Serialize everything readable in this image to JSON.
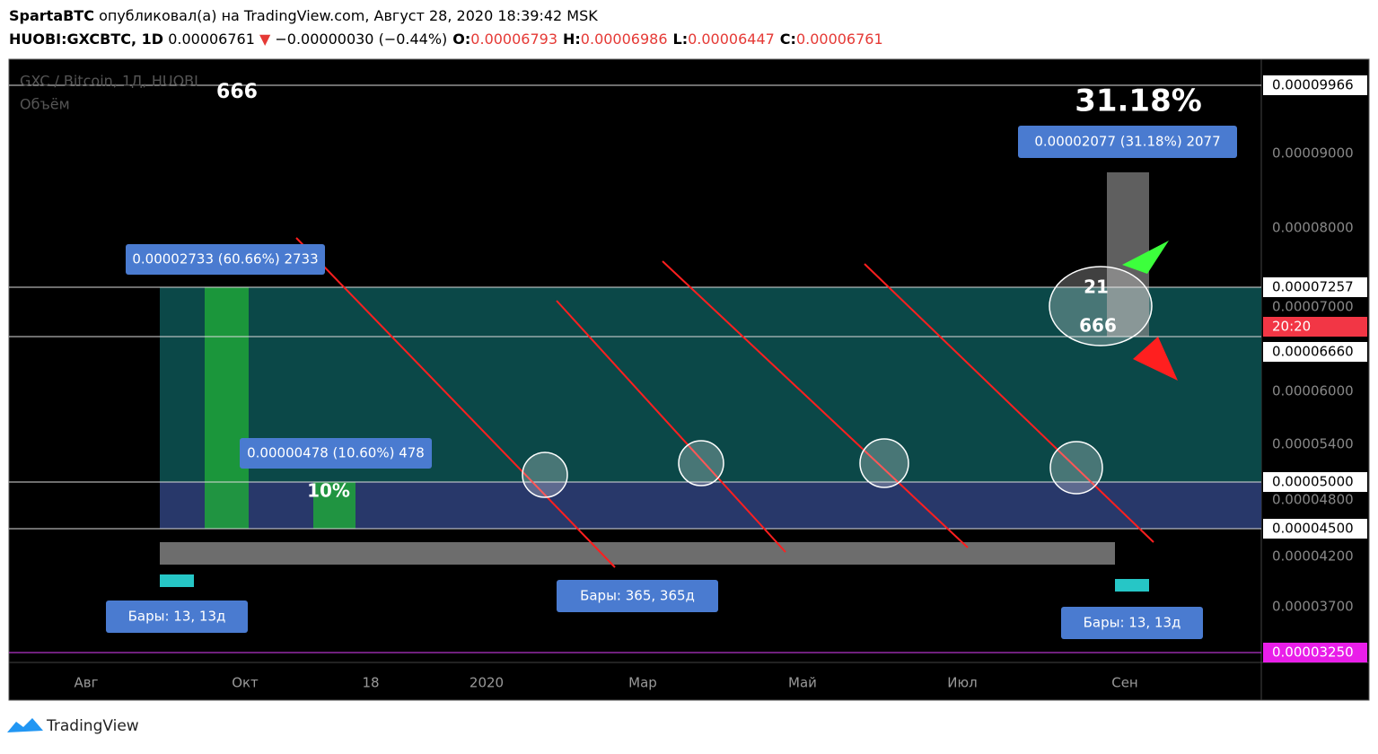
{
  "header": {
    "author": "SpartaBTC",
    "published": "опубликовал(а) на TradingView.com, Август 28, 2020 18:39:42 MSK",
    "symbol": "HUOBI:GXCBTC, 1D",
    "price": "0.00006761",
    "change": "−0.00000030 (−0.44%)",
    "ohlc": [
      {
        "label": "O:",
        "value": "0.00006793"
      },
      {
        "label": "H:",
        "value": "0.00006986"
      },
      {
        "label": "L:",
        "value": "0.00006447"
      },
      {
        "label": "C:",
        "value": "0.00006761"
      }
    ]
  },
  "chart": {
    "legend": "GXC / Bitcoin, 1Д, HUOBI",
    "volume": "Объём",
    "annotations": [
      "666",
      "31.18%",
      "10%",
      "21",
      "666"
    ],
    "measures": [
      "0.00002077 (31.18%) 2077",
      "0.00002733 (60.66%) 2733",
      "0.00000478 (10.60%) 478"
    ],
    "bars": [
      "Бары: 13, 13д",
      "Бары: 365, 365д",
      "Бары: 13, 13д"
    ],
    "price_axis": [
      "0.00009966",
      "0.00009000",
      "0.00008000",
      "0.00007257",
      "0.00007000",
      "20:20",
      "0.00006660",
      "0.00006000",
      "0.00005400",
      "0.00005000",
      "0.00004800",
      "0.00004500",
      "0.00004200",
      "0.00003700",
      "0.00003250"
    ],
    "time_axis": [
      "Авг",
      "Окт",
      "18",
      "2020",
      "Мар",
      "Май",
      "Июл",
      "Сен"
    ]
  },
  "footer": {
    "brand": "TradingView"
  }
}
